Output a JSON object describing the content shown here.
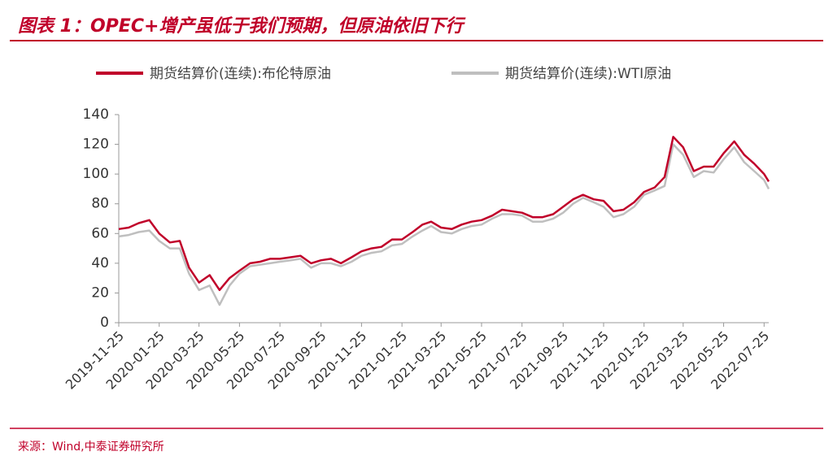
{
  "chart_data": {
    "type": "line",
    "title": "图表 1：OPEC+增产虽低于我们预期，但原油依旧下行",
    "source": "来源：Wind,中泰证券研究所",
    "x": [
      "2019-11-25",
      "2019-12-10",
      "2019-12-25",
      "2020-01-10",
      "2020-01-25",
      "2020-02-10",
      "2020-02-25",
      "2020-03-10",
      "2020-03-25",
      "2020-04-10",
      "2020-04-25",
      "2020-05-10",
      "2020-05-25",
      "2020-06-10",
      "2020-06-25",
      "2020-07-10",
      "2020-07-25",
      "2020-08-10",
      "2020-08-25",
      "2020-09-10",
      "2020-09-25",
      "2020-10-10",
      "2020-10-25",
      "2020-11-10",
      "2020-11-25",
      "2020-12-10",
      "2020-12-25",
      "2021-01-10",
      "2021-01-25",
      "2021-02-10",
      "2021-02-25",
      "2021-03-10",
      "2021-03-25",
      "2021-04-10",
      "2021-04-25",
      "2021-05-10",
      "2021-05-25",
      "2021-06-10",
      "2021-06-25",
      "2021-07-10",
      "2021-07-25",
      "2021-08-10",
      "2021-08-25",
      "2021-09-10",
      "2021-09-25",
      "2021-10-10",
      "2021-10-25",
      "2021-11-10",
      "2021-11-25",
      "2021-12-10",
      "2021-12-25",
      "2022-01-10",
      "2022-01-25",
      "2022-02-10",
      "2022-02-25",
      "2022-03-10",
      "2022-03-25",
      "2022-04-10",
      "2022-04-25",
      "2022-05-10",
      "2022-05-25",
      "2022-06-10",
      "2022-06-25",
      "2022-07-10",
      "2022-07-25",
      "2022-08-01"
    ],
    "series": [
      {
        "name": "期货结算价(连续):布伦特原油",
        "color": "#c0002a",
        "values": [
          63,
          64,
          67,
          69,
          60,
          54,
          55,
          37,
          27,
          32,
          22,
          30,
          35,
          40,
          41,
          43,
          43,
          44,
          45,
          40,
          42,
          43,
          40,
          44,
          48,
          50,
          51,
          56,
          56,
          61,
          66,
          68,
          64,
          63,
          66,
          68,
          69,
          72,
          76,
          75,
          74,
          71,
          71,
          73,
          78,
          83,
          86,
          83,
          82,
          75,
          76,
          81,
          88,
          91,
          98,
          125,
          118,
          102,
          105,
          105,
          114,
          122,
          113,
          107,
          100,
          95
        ]
      },
      {
        "name": "期货结算价(连续):WTI原油",
        "color": "#bfbfbf",
        "values": [
          58,
          59,
          61,
          62,
          55,
          50,
          50,
          33,
          22,
          25,
          12,
          25,
          33,
          38,
          39,
          40,
          41,
          42,
          43,
          37,
          40,
          40,
          38,
          41,
          45,
          47,
          48,
          52,
          53,
          58,
          62,
          65,
          61,
          60,
          63,
          65,
          66,
          70,
          73,
          73,
          72,
          68,
          68,
          70,
          74,
          80,
          84,
          81,
          78,
          71,
          73,
          78,
          86,
          89,
          92,
          120,
          113,
          98,
          102,
          101,
          110,
          118,
          108,
          102,
          96,
          90
        ]
      }
    ],
    "xlim": [
      "2019-11-25",
      "2022-08-01"
    ],
    "xticks": [
      "2019-11-25",
      "2020-01-25",
      "2020-03-25",
      "2020-05-25",
      "2020-07-25",
      "2020-09-25",
      "2020-11-25",
      "2021-01-25",
      "2021-03-25",
      "2021-05-25",
      "2021-07-25",
      "2021-09-25",
      "2021-11-25",
      "2022-01-25",
      "2022-03-25",
      "2022-05-25",
      "2022-07-25"
    ],
    "ylim": [
      0,
      140
    ],
    "yticks": [
      0,
      20,
      40,
      60,
      80,
      100,
      120,
      140
    ],
    "grid": false
  }
}
